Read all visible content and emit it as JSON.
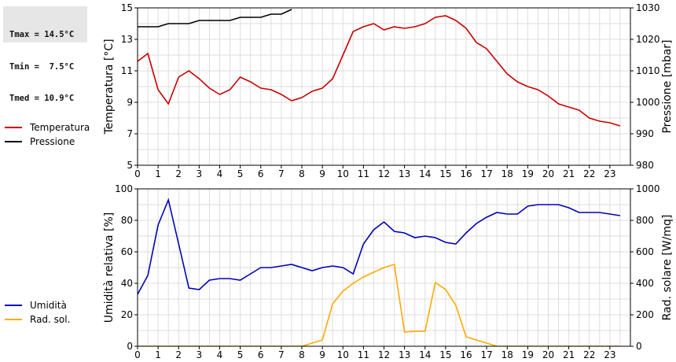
{
  "stats": {
    "tmax": "Tmax = 14.5°C",
    "tmin": "Tmin =  7.5°C",
    "tmed": "Tmed = 10.9°C"
  },
  "chart_data": [
    {
      "type": "line",
      "xlabel": "",
      "ylabel": "Temperatura [°C]",
      "y2label": "Pressione [mbar]",
      "xlim": [
        0,
        24
      ],
      "ylim": [
        5,
        15
      ],
      "y2lim": [
        980,
        1030
      ],
      "xticks": [
        0,
        1,
        2,
        3,
        4,
        5,
        6,
        7,
        8,
        9,
        10,
        11,
        12,
        13,
        14,
        15,
        16,
        17,
        18,
        19,
        20,
        21,
        22,
        23
      ],
      "yticks": [
        5,
        7,
        9,
        11,
        13,
        15
      ],
      "y2ticks": [
        980,
        990,
        1000,
        1010,
        1020,
        1030
      ],
      "grid": true,
      "legend_position": "left",
      "series": [
        {
          "name": "Temperatura",
          "axis": "left",
          "color": "#cc0000",
          "x": [
            0,
            0.5,
            1,
            1.5,
            2,
            2.5,
            3,
            3.5,
            4,
            4.5,
            5,
            5.5,
            6,
            6.5,
            7,
            7.5,
            8,
            8.5,
            9,
            9.5,
            10,
            10.5,
            11,
            11.5,
            12,
            12.5,
            13,
            13.5,
            14,
            14.5,
            15,
            15.5,
            16,
            16.5,
            17,
            17.5,
            18,
            18.5,
            19,
            19.5,
            20,
            20.5,
            21,
            21.5,
            22,
            22.5,
            23,
            23.5
          ],
          "y": [
            11.6,
            12.1,
            9.8,
            8.9,
            10.6,
            11.0,
            10.5,
            9.9,
            9.5,
            9.8,
            10.6,
            10.3,
            9.9,
            9.8,
            9.5,
            9.1,
            9.3,
            9.7,
            9.9,
            10.5,
            12.0,
            13.5,
            13.8,
            14.0,
            13.6,
            13.8,
            13.7,
            13.8,
            14.0,
            14.4,
            14.5,
            14.2,
            13.7,
            12.8,
            12.4,
            11.6,
            10.8,
            10.3,
            10.0,
            9.8,
            9.4,
            8.9,
            8.7,
            8.5,
            8.0,
            7.8,
            7.7,
            7.5
          ]
        },
        {
          "name": "Pressione",
          "axis": "right",
          "color": "#000000",
          "x": [
            0,
            1,
            1.5,
            2,
            2.5,
            3,
            3.5,
            4,
            4.5,
            5,
            5.5,
            6,
            6.5,
            7,
            7.5
          ],
          "y": [
            1024,
            1024,
            1025,
            1025,
            1025,
            1026,
            1026,
            1026,
            1026,
            1027,
            1027,
            1027,
            1028,
            1028,
            1029.5
          ]
        }
      ]
    },
    {
      "type": "line",
      "xlabel": "",
      "ylabel": "Umidità relativa [%]",
      "y2label": "Rad. solare [W/mq]",
      "xlim": [
        0,
        24
      ],
      "ylim": [
        0,
        100
      ],
      "y2lim": [
        0,
        1000
      ],
      "xticks": [
        0,
        1,
        2,
        3,
        4,
        5,
        6,
        7,
        8,
        9,
        10,
        11,
        12,
        13,
        14,
        15,
        16,
        17,
        18,
        19,
        20,
        21,
        22,
        23
      ],
      "yticks": [
        0,
        20,
        40,
        60,
        80,
        100
      ],
      "y2ticks": [
        0,
        200,
        400,
        600,
        800,
        1000
      ],
      "grid": true,
      "legend_position": "left",
      "series": [
        {
          "name": "Umidità",
          "axis": "left",
          "color": "#0000bb",
          "x": [
            0,
            0.5,
            1,
            1.5,
            2,
            2.5,
            3,
            3.5,
            4,
            4.5,
            5,
            5.5,
            6,
            6.5,
            7,
            7.5,
            8,
            8.5,
            9,
            9.5,
            10,
            10.5,
            11,
            11.5,
            12,
            12.5,
            13,
            13.5,
            14,
            14.5,
            15,
            15.5,
            16,
            16.5,
            17,
            17.5,
            18,
            18.5,
            19,
            19.5,
            20,
            20.5,
            21,
            21.5,
            22,
            22.5,
            23,
            23.5
          ],
          "y": [
            33,
            45,
            77,
            93,
            65,
            37,
            36,
            42,
            43,
            43,
            42,
            46,
            50,
            50,
            51,
            52,
            50,
            48,
            50,
            51,
            50,
            46,
            65,
            74,
            79,
            73,
            72,
            69,
            70,
            69,
            66,
            65,
            72,
            78,
            82,
            85,
            84,
            84,
            89,
            90,
            90,
            90,
            88,
            85,
            85,
            85,
            84,
            83
          ]
        },
        {
          "name": "Rad. sol.",
          "axis": "right",
          "color": "#ffaa00",
          "x": [
            0,
            0.5,
            1,
            1.5,
            2,
            2.5,
            3,
            3.5,
            4,
            4.5,
            5,
            5.5,
            6,
            6.5,
            7,
            7.5,
            8,
            8.5,
            9,
            9.5,
            10,
            10.5,
            11,
            11.5,
            12,
            12.5,
            13,
            13.5,
            14,
            14.5,
            15,
            15.5,
            16,
            16.5,
            17,
            17.5,
            18,
            18.5,
            19,
            19.5,
            20,
            20.5,
            21,
            21.5,
            22,
            22.5,
            23,
            23.5
          ],
          "y": [
            0,
            0,
            0,
            0,
            0,
            0,
            0,
            0,
            0,
            0,
            0,
            0,
            0,
            0,
            0,
            0,
            0,
            20,
            40,
            270,
            350,
            400,
            440,
            470,
            500,
            520,
            90,
            95,
            95,
            405,
            360,
            260,
            60,
            40,
            20,
            0,
            0,
            0,
            0,
            0,
            0,
            0,
            0,
            0,
            0,
            0,
            0,
            0
          ]
        }
      ]
    }
  ]
}
